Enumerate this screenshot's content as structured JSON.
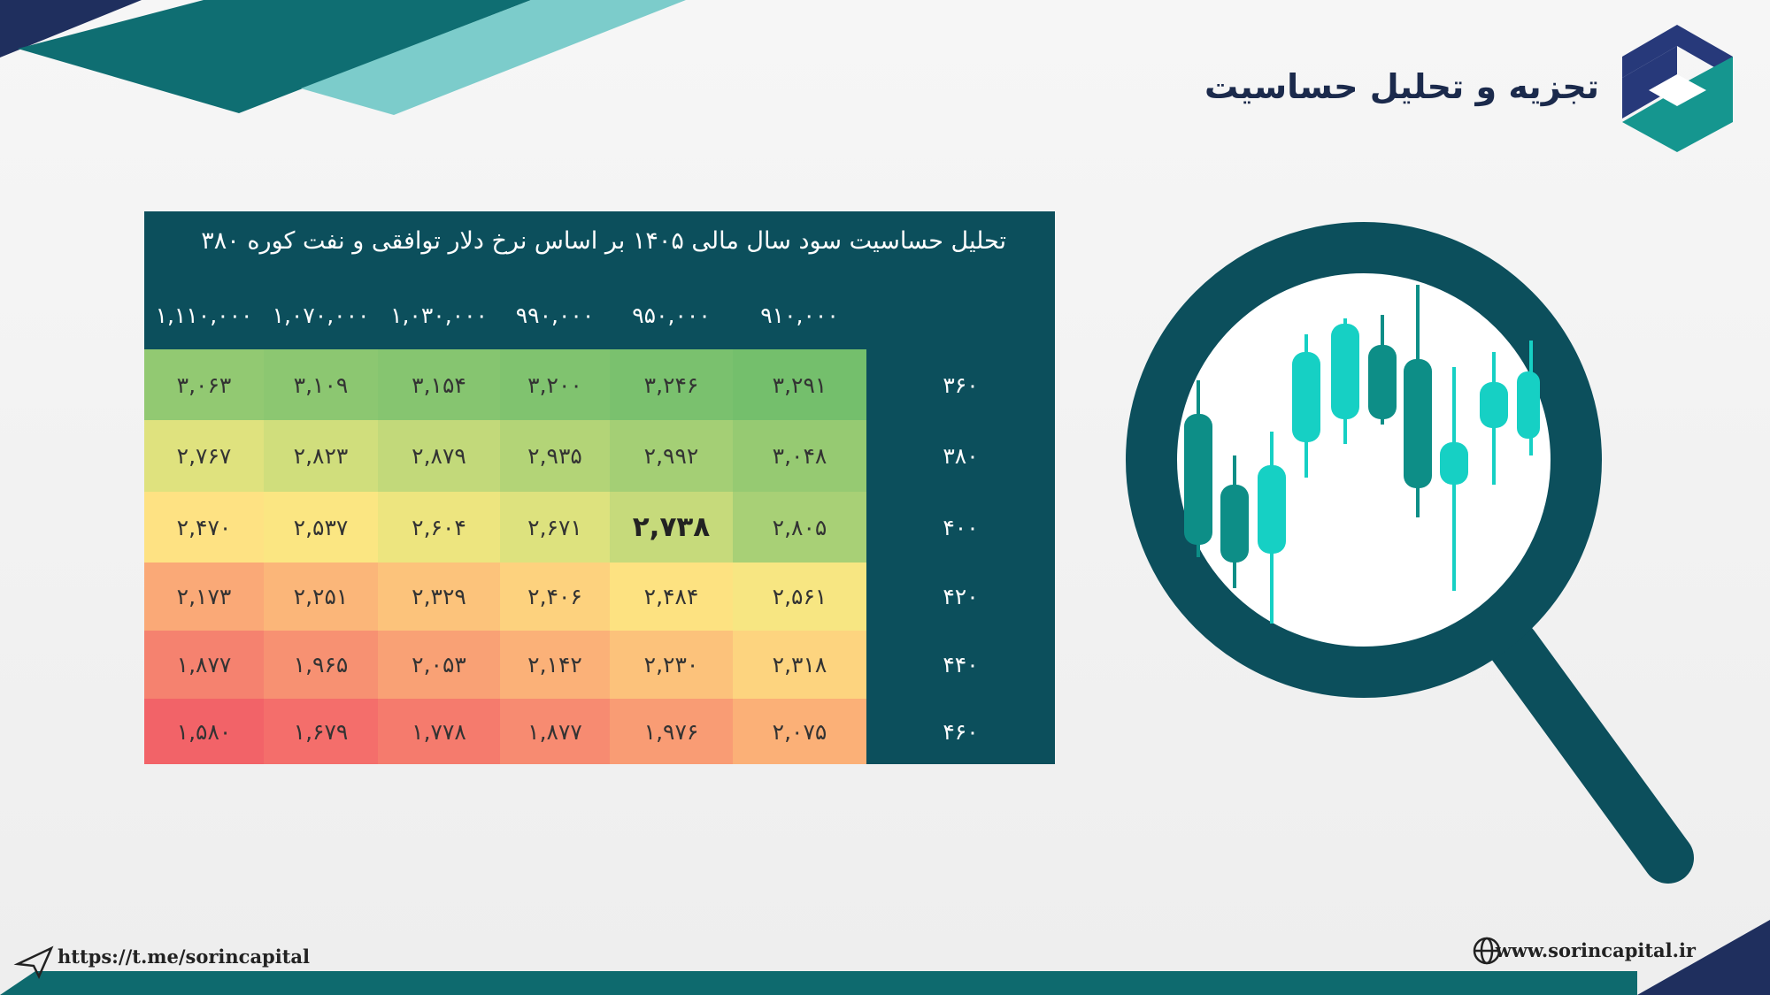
{
  "header": {
    "title": "تجزیه و تحلیل حساسیت"
  },
  "table": {
    "title": "تحلیل حساسیت سود سال مالی ۱۴۰۵  بر اساس نرخ دلار توافقی و نفت کوره ۳۸۰",
    "columns": [
      "۹۱۰,۰۰۰",
      "۹۵۰,۰۰۰",
      "۹۹۰,۰۰۰",
      "۱,۰۳۰,۰۰۰",
      "۱,۰۷۰,۰۰۰",
      "۱,۱۱۰,۰۰۰"
    ],
    "rows": [
      {
        "label": "۳۶۰",
        "values": [
          "۳,۲۹۱",
          "۳,۲۴۶",
          "۳,۲۰۰",
          "۳,۱۵۴",
          "۳,۱۰۹",
          "۳,۰۶۳"
        ]
      },
      {
        "label": "۳۸۰",
        "values": [
          "۳,۰۴۸",
          "۲,۹۹۲",
          "۲,۹۳۵",
          "۲,۸۷۹",
          "۲,۸۲۳",
          "۲,۷۶۷"
        ]
      },
      {
        "label": "۴۰۰",
        "values": [
          "۲,۸۰۵",
          "۲,۷۳۸",
          "۲,۶۷۱",
          "۲,۶۰۴",
          "۲,۵۳۷",
          "۲,۴۷۰"
        ]
      },
      {
        "label": "۴۲۰",
        "values": [
          "۲,۵۶۱",
          "۲,۴۸۴",
          "۲,۴۰۶",
          "۲,۳۲۹",
          "۲,۲۵۱",
          "۲,۱۷۳"
        ]
      },
      {
        "label": "۴۴۰",
        "values": [
          "۲,۳۱۸",
          "۲,۲۳۰",
          "۲,۱۴۲",
          "۲,۰۵۳",
          "۱,۹۶۵",
          "۱,۸۷۷"
        ]
      },
      {
        "label": "۴۶۰",
        "values": [
          "۲,۰۷۵",
          "۱,۹۷۶",
          "۱,۸۷۷",
          "۱,۷۷۸",
          "۱,۶۷۹",
          "۱,۵۸۰"
        ]
      }
    ],
    "cell_colors": [
      [
        "#74bf6c",
        "#7ac16e",
        "#80c36f",
        "#86c570",
        "#8cc771",
        "#92c972"
      ],
      [
        "#96ca72",
        "#a4cf75",
        "#b3d477",
        "#c2d97a",
        "#d0de7c",
        "#dfe27e"
      ],
      [
        "#a8d076",
        "#c6da7b",
        "#dde27e",
        "#ede57f",
        "#fbe682",
        "#fee283"
      ],
      [
        "#f7e682",
        "#fde281",
        "#fdd27e",
        "#fcc37b",
        "#fbb679",
        "#faa977"
      ],
      [
        "#fdd47f",
        "#fcc27b",
        "#fbb178",
        "#f9a175",
        "#f79172",
        "#f5826f"
      ],
      [
        "#fbb077",
        "#f99c74",
        "#f78b71",
        "#f57b6d",
        "#f46e6b",
        "#f26368"
      ]
    ],
    "highlight": [
      2,
      1
    ]
  },
  "footer": {
    "telegram": "https://t.me/sorincapital",
    "website": "www.sorincapital.ir"
  }
}
